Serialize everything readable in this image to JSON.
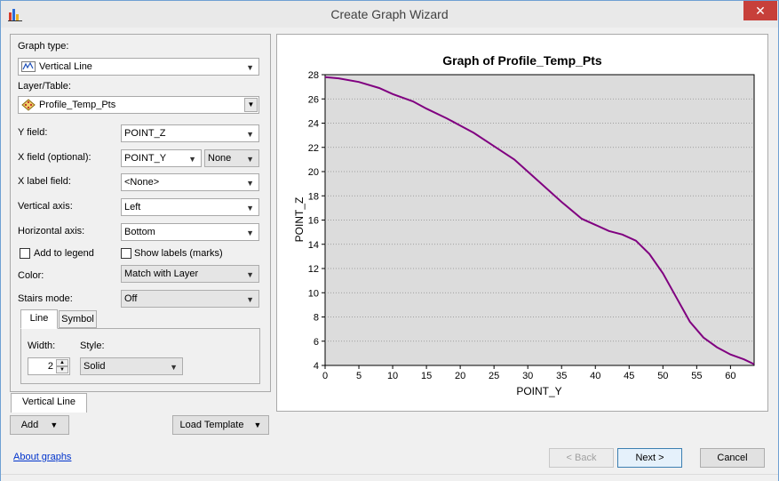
{
  "window": {
    "title": "Create Graph Wizard",
    "close_glyph": "✕",
    "accent": "#c7403a"
  },
  "form": {
    "graph_type_label": "Graph type:",
    "graph_type_value": "Vertical Line",
    "layer_label": "Layer/Table:",
    "layer_value": "Profile_Temp_Pts",
    "y_field_label": "Y field:",
    "y_field_value": "POINT_Z",
    "x_field_label": "X field (optional):",
    "x_field_value": "POINT_Y",
    "x_field_sort": "None",
    "x_label_field_label": "X label field:",
    "x_label_field_value": "<None>",
    "vertical_axis_label": "Vertical axis:",
    "vertical_axis_value": "Left",
    "horizontal_axis_label": "Horizontal axis:",
    "horizontal_axis_value": "Bottom",
    "add_to_legend_label": "Add to legend",
    "show_labels_label": "Show labels (marks)",
    "color_label": "Color:",
    "color_value": "Match with Layer",
    "stairs_label": "Stairs mode:",
    "stairs_value": "Off"
  },
  "style_tabs": {
    "line_tab": "Line",
    "symbol_tab": "Symbol",
    "width_label": "Width:",
    "width_value": "2",
    "style_label": "Style:",
    "style_value": "Solid"
  },
  "series_tab": "Vertical Line",
  "buttons": {
    "add": "Add",
    "load_template": "Load Template",
    "back": "< Back",
    "next": "Next >",
    "cancel": "Cancel"
  },
  "about_link": "About graphs",
  "chart_data": {
    "type": "line",
    "title": "Graph of Profile_Temp_Pts",
    "xlabel": "POINT_Y",
    "ylabel": "POINT_Z",
    "xlim": [
      0,
      63.5
    ],
    "ylim": [
      4,
      28
    ],
    "x_ticks": [
      0,
      5,
      10,
      15,
      20,
      25,
      30,
      35,
      40,
      45,
      50,
      55,
      60
    ],
    "y_ticks": [
      4,
      6,
      8,
      10,
      12,
      14,
      16,
      18,
      20,
      22,
      24,
      26,
      28
    ],
    "grid": true,
    "line_color": "#800080",
    "plot_background": "#dcdcdc",
    "series": [
      {
        "x": [
          0,
          2,
          5,
          8,
          10,
          13,
          15,
          18,
          20,
          22,
          25,
          28,
          30,
          32,
          35,
          38,
          40,
          42,
          44,
          46,
          48,
          50,
          52,
          54,
          56,
          58,
          60,
          62,
          63.5
        ],
        "y": [
          27.8,
          27.7,
          27.4,
          26.9,
          26.4,
          25.8,
          25.2,
          24.4,
          23.8,
          23.2,
          22.1,
          21.0,
          20.0,
          19.0,
          17.5,
          16.1,
          15.6,
          15.1,
          14.8,
          14.3,
          13.2,
          11.6,
          9.6,
          7.6,
          6.3,
          5.5,
          4.9,
          4.5,
          4.1
        ]
      }
    ]
  }
}
